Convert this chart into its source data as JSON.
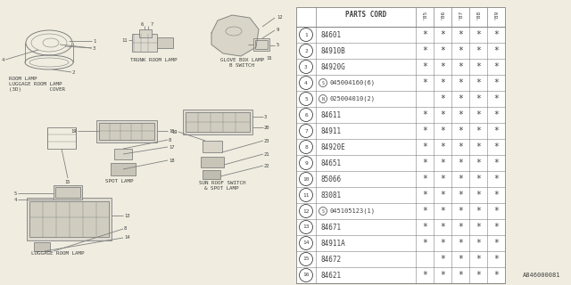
{
  "bg_color": "#f0ede0",
  "line_color": "#808080",
  "text_color": "#404040",
  "diagram_ref": "A846000081",
  "parts_cord_header": "PARTS CORD",
  "year_cols": [
    "'85",
    "'86",
    "'87",
    "'88",
    "'89"
  ],
  "rows": [
    {
      "num": "1",
      "part": "84601",
      "stars": [
        1,
        1,
        1,
        1,
        1
      ],
      "special": null
    },
    {
      "num": "2",
      "part": "84910B",
      "stars": [
        1,
        1,
        1,
        1,
        1
      ],
      "special": null
    },
    {
      "num": "3",
      "part": "84920G",
      "stars": [
        1,
        1,
        1,
        1,
        1
      ],
      "special": null
    },
    {
      "num": "4",
      "part": "045004160(6)",
      "stars": [
        1,
        1,
        1,
        1,
        1
      ],
      "special": "S"
    },
    {
      "num": "5",
      "part": "025004010(2)",
      "stars": [
        0,
        1,
        1,
        1,
        1
      ],
      "special": "N"
    },
    {
      "num": "6",
      "part": "84611",
      "stars": [
        1,
        1,
        1,
        1,
        1
      ],
      "special": null
    },
    {
      "num": "7",
      "part": "84911",
      "stars": [
        1,
        1,
        1,
        1,
        1
      ],
      "special": null
    },
    {
      "num": "8",
      "part": "84920E",
      "stars": [
        1,
        1,
        1,
        1,
        1
      ],
      "special": null
    },
    {
      "num": "9",
      "part": "84651",
      "stars": [
        1,
        1,
        1,
        1,
        1
      ],
      "special": null
    },
    {
      "num": "10",
      "part": "85066",
      "stars": [
        1,
        1,
        1,
        1,
        1
      ],
      "special": null
    },
    {
      "num": "11",
      "part": "83081",
      "stars": [
        1,
        1,
        1,
        1,
        1
      ],
      "special": null
    },
    {
      "num": "12",
      "part": "045105123(1)",
      "stars": [
        1,
        1,
        1,
        1,
        1
      ],
      "special": "S"
    },
    {
      "num": "13",
      "part": "84671",
      "stars": [
        1,
        1,
        1,
        1,
        1
      ],
      "special": null
    },
    {
      "num": "14",
      "part": "84911A",
      "stars": [
        1,
        1,
        1,
        1,
        1
      ],
      "special": null
    },
    {
      "num": "15",
      "part": "84672",
      "stars": [
        0,
        1,
        1,
        1,
        1
      ],
      "special": null
    },
    {
      "num": "16",
      "part": "84621",
      "stars": [
        1,
        1,
        1,
        1,
        1
      ],
      "special": null
    }
  ]
}
